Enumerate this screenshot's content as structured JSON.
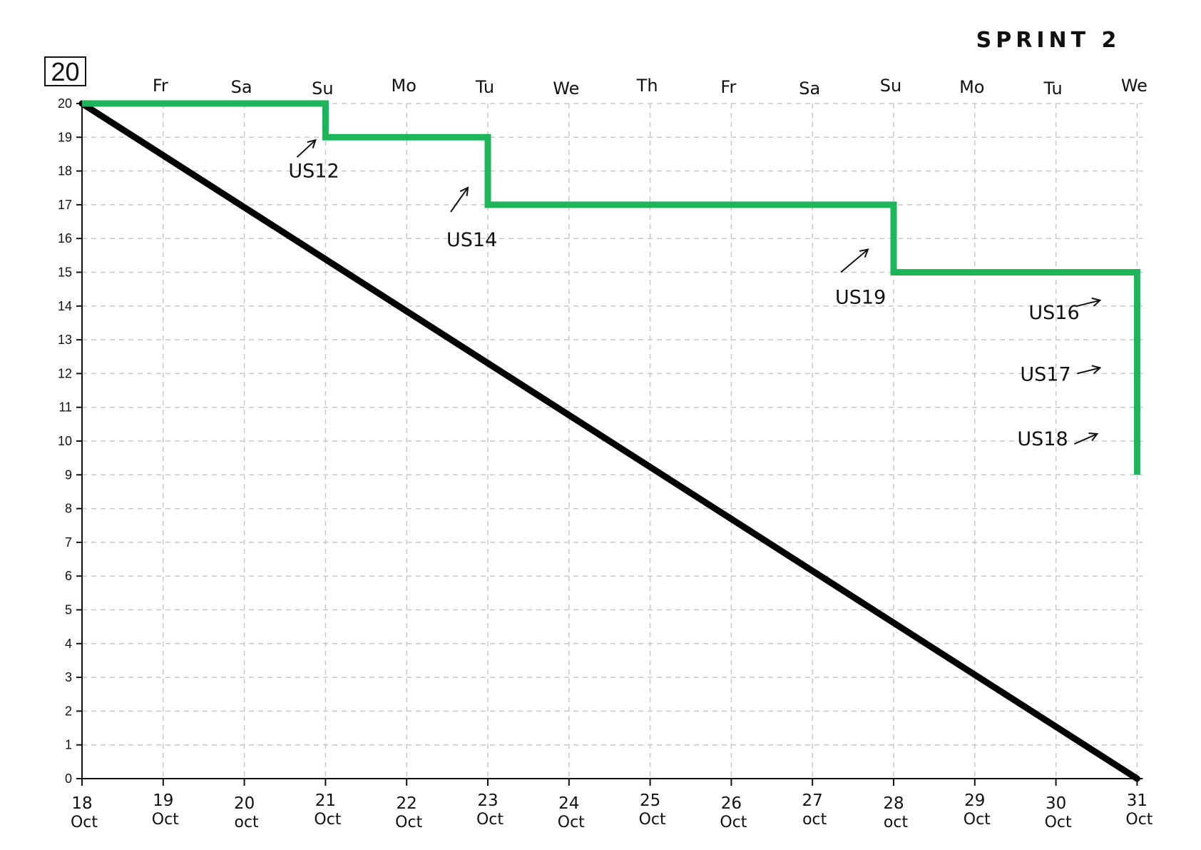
{
  "chart_data": {
    "type": "line",
    "title": "SPRINT 2",
    "total_label": "20",
    "ylim": [
      0,
      20
    ],
    "yticks": [
      "0",
      "1",
      "2",
      "3",
      "4",
      "5",
      "6",
      "7",
      "8",
      "9",
      "10",
      "11",
      "12",
      "13",
      "14",
      "15",
      "16",
      "17",
      "18",
      "19",
      "20"
    ],
    "x_dates": [
      "18",
      "19",
      "20",
      "21",
      "22",
      "23",
      "24",
      "25",
      "26",
      "27",
      "28",
      "29",
      "30",
      "31"
    ],
    "x_month_labels": [
      "Oct",
      "Oct",
      "oct",
      "Oct",
      "Oct",
      "Oct",
      "Oct",
      "Oct",
      "Oct",
      "oct",
      "oct",
      "Oct",
      "Oct",
      "Oct"
    ],
    "weekday_labels": [
      "Fr",
      "Sa",
      "Su",
      "Mo",
      "Tu",
      "We",
      "Th",
      "Fr",
      "Sa",
      "Su",
      "Mo",
      "Tu",
      "We"
    ],
    "grid": true,
    "series": [
      {
        "points": [
          [
            "18",
            20
          ],
          [
            "31",
            0
          ]
        ],
        "color": "#000000"
      },
      {
        "points": [
          [
            "18",
            20
          ],
          [
            "21",
            20
          ],
          [
            "21",
            19
          ],
          [
            "23",
            19
          ],
          [
            "23",
            17
          ],
          [
            "28",
            17
          ],
          [
            "28",
            15
          ],
          [
            "31",
            15
          ],
          [
            "31",
            9
          ]
        ],
        "color": "#1fb35a"
      }
    ],
    "annotations": [
      {
        "text": "US12",
        "x": "21",
        "y": 19
      },
      {
        "text": "US14",
        "x": "23",
        "y": 17
      },
      {
        "text": "US19",
        "x": "28",
        "y": 15
      },
      {
        "text": "US16",
        "x": "31",
        "y": 14
      },
      {
        "text": "US17",
        "x": "31",
        "y": 12
      },
      {
        "text": "US18",
        "x": "31",
        "y": 10
      }
    ]
  }
}
